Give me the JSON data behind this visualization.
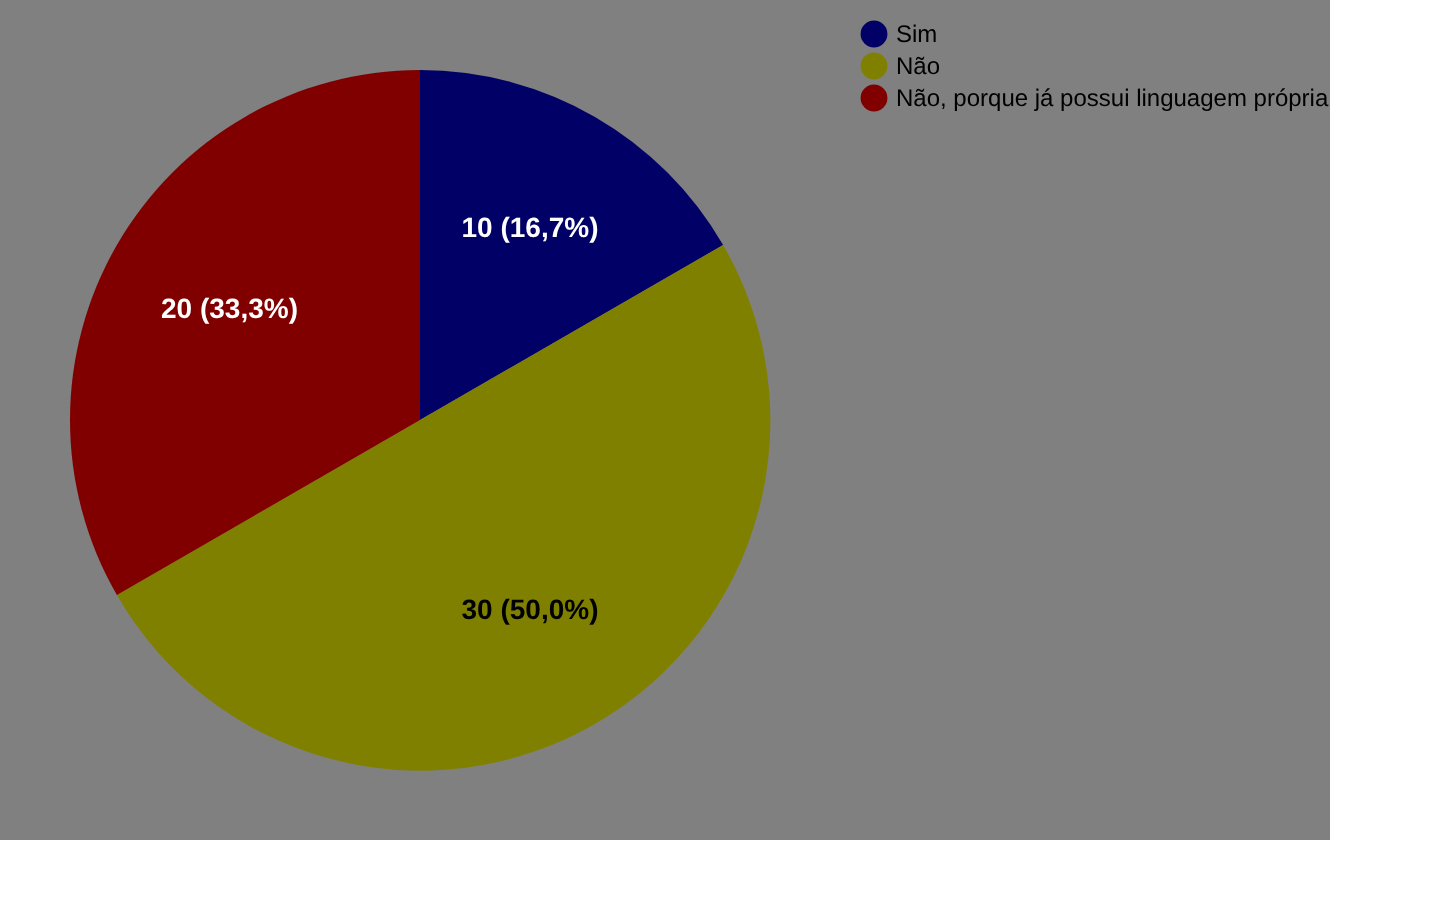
{
  "chart_data": {
    "type": "pie",
    "categories": [
      "Sim",
      "Não",
      "Não, porque já possui linguagem própria"
    ],
    "values": [
      10,
      30,
      20
    ],
    "colors": [
      "#000066",
      "#808000",
      "#800000"
    ],
    "value_labels": [
      "10 (16,7%)",
      "30 (50,0%)",
      "20 (33,3%)"
    ],
    "legend": "top right"
  }
}
